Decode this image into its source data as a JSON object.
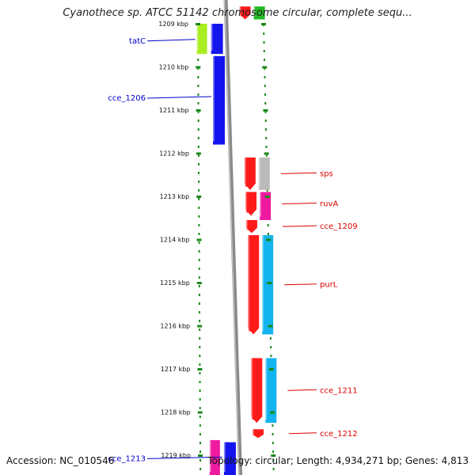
{
  "title": "Cyanothece sp. ATCC 51142 chromosome circular, complete sequ...",
  "footer": {
    "accession": "Accession: NC_010546",
    "topology": "Topology: circular; Length: 4,934,271 bp; Genes: 4,813"
  },
  "colors": {
    "red": "#ff1a1a",
    "blue": "#1414ee",
    "cyan": "#14b4ee",
    "lime": "#aaee22",
    "magenta": "#ee1aa0",
    "gray": "#bbbbbb",
    "green": "#22bb22",
    "backbone": "#8a8a8a",
    "dots": "#1a8a1a"
  },
  "ticks": [
    {
      "label": "1209 kbp",
      "kb": 1209
    },
    {
      "label": "1210 kbp",
      "kb": 1210
    },
    {
      "label": "1211 kbp",
      "kb": 1211
    },
    {
      "label": "1212 kbp",
      "kb": 1212
    },
    {
      "label": "1213 kbp",
      "kb": 1213
    },
    {
      "label": "1214 kbp",
      "kb": 1214
    },
    {
      "label": "1215 kbp",
      "kb": 1215
    },
    {
      "label": "1216 kbp",
      "kb": 1216
    },
    {
      "label": "1217 kbp",
      "kb": 1217
    },
    {
      "label": "1218 kbp",
      "kb": 1218
    },
    {
      "label": "1219 kbp",
      "kb": 1219
    }
  ],
  "genes": [
    {
      "name": "tatC",
      "side": "left",
      "lane": 2,
      "color": "lime",
      "start": 1209.0,
      "end": 1209.7
    },
    {
      "name": "",
      "side": "left",
      "lane": 1,
      "color": "blue",
      "start": 1209.0,
      "end": 1209.7
    },
    {
      "name": "cce_1206",
      "side": "left",
      "lane": 1,
      "color": "blue",
      "start": 1209.75,
      "end": 1211.8
    },
    {
      "name": "sps",
      "side": "right",
      "lane": 1,
      "color": "red",
      "start": 1212.1,
      "end": 1212.85
    },
    {
      "name": "",
      "side": "right",
      "lane": 2,
      "color": "gray",
      "start": 1212.1,
      "end": 1212.85
    },
    {
      "name": "ruvA",
      "side": "right",
      "lane": 1,
      "color": "red",
      "start": 1212.9,
      "end": 1213.45
    },
    {
      "name": "",
      "side": "right",
      "lane": 2,
      "color": "magenta",
      "start": 1212.9,
      "end": 1213.55
    },
    {
      "name": "cce_1209",
      "side": "right",
      "lane": 1,
      "color": "red",
      "start": 1213.55,
      "end": 1213.85
    },
    {
      "name": "purL",
      "side": "right",
      "lane": 1,
      "color": "red",
      "start": 1213.9,
      "end": 1216.2
    },
    {
      "name": "",
      "side": "right",
      "lane": 2,
      "color": "cyan",
      "start": 1213.9,
      "end": 1216.2
    },
    {
      "name": "cce_1211",
      "side": "right",
      "lane": 1,
      "color": "red",
      "start": 1216.75,
      "end": 1218.25
    },
    {
      "name": "",
      "side": "right",
      "lane": 2,
      "color": "cyan",
      "start": 1216.75,
      "end": 1218.25
    },
    {
      "name": "cce_1212",
      "side": "right",
      "lane": 1,
      "color": "red",
      "start": 1218.4,
      "end": 1218.6
    },
    {
      "name": "cce_1213",
      "side": "left",
      "lane": 1,
      "color": "blue",
      "start": 1218.7,
      "end": 1219.5
    },
    {
      "name": "",
      "side": "left",
      "lane": 2,
      "color": "magenta",
      "start": 1218.65,
      "end": 1219.5
    },
    {
      "name": "",
      "side": "right",
      "lane": 1,
      "color": "red",
      "start": 1208.6,
      "end": 1208.9
    },
    {
      "name": "",
      "side": "right",
      "lane": 2,
      "color": "green",
      "start": 1208.6,
      "end": 1208.9
    }
  ]
}
